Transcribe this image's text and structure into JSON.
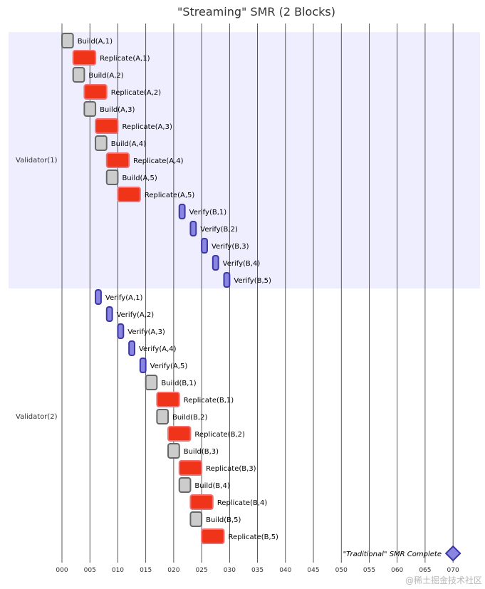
{
  "chart_data": {
    "type": "gantt",
    "title": "\"Streaming\" SMR (2 Blocks)",
    "x_axis": {
      "unit": "time",
      "range": [
        0,
        70
      ],
      "ticks": [
        "000",
        "005",
        "010",
        "015",
        "020",
        "025",
        "030",
        "035",
        "040",
        "045",
        "050",
        "055",
        "060",
        "065",
        "070"
      ],
      "tick_values": [
        0,
        5,
        10,
        15,
        20,
        25,
        30,
        35,
        40,
        45,
        50,
        55,
        60,
        65,
        70
      ]
    },
    "task_types": {
      "build": {
        "fill": "#cccccc",
        "stroke": "#666666"
      },
      "replicate": {
        "fill": "#f03419",
        "stroke": "#f07070"
      },
      "verify": {
        "fill": "#8a85e0",
        "stroke": "#3b36a6"
      },
      "milestone": {
        "fill": "#8a85e0",
        "stroke": "#3b36a6"
      }
    },
    "sections": [
      {
        "name": "Validator(1)",
        "background": "#eeeeff",
        "tasks": [
          {
            "label": "Build(A,1)",
            "type": "build",
            "start": 0,
            "end": 2
          },
          {
            "label": "Replicate(A,1)",
            "type": "replicate",
            "start": 2,
            "end": 6
          },
          {
            "label": "Build(A,2)",
            "type": "build",
            "start": 2,
            "end": 4
          },
          {
            "label": "Replicate(A,2)",
            "type": "replicate",
            "start": 4,
            "end": 8
          },
          {
            "label": "Build(A,3)",
            "type": "build",
            "start": 4,
            "end": 6
          },
          {
            "label": "Replicate(A,3)",
            "type": "replicate",
            "start": 6,
            "end": 10
          },
          {
            "label": "Build(A,4)",
            "type": "build",
            "start": 6,
            "end": 8
          },
          {
            "label": "Replicate(A,4)",
            "type": "replicate",
            "start": 8,
            "end": 12
          },
          {
            "label": "Build(A,5)",
            "type": "build",
            "start": 8,
            "end": 10
          },
          {
            "label": "Replicate(A,5)",
            "type": "replicate",
            "start": 10,
            "end": 14
          },
          {
            "label": "Verify(B,1)",
            "type": "verify",
            "start": 21,
            "end": 22
          },
          {
            "label": "Verify(B,2)",
            "type": "verify",
            "start": 23,
            "end": 24
          },
          {
            "label": "Verify(B,3)",
            "type": "verify",
            "start": 25,
            "end": 26
          },
          {
            "label": "Verify(B,4)",
            "type": "verify",
            "start": 27,
            "end": 28
          },
          {
            "label": "Verify(B,5)",
            "type": "verify",
            "start": 29,
            "end": 30
          }
        ]
      },
      {
        "name": "Validator(2)",
        "background": "#ffffff",
        "tasks": [
          {
            "label": "Verify(A,1)",
            "type": "verify",
            "start": 6,
            "end": 7
          },
          {
            "label": "Verify(A,2)",
            "type": "verify",
            "start": 8,
            "end": 9
          },
          {
            "label": "Verify(A,3)",
            "type": "verify",
            "start": 10,
            "end": 11
          },
          {
            "label": "Verify(A,4)",
            "type": "verify",
            "start": 12,
            "end": 13
          },
          {
            "label": "Verify(A,5)",
            "type": "verify",
            "start": 14,
            "end": 15
          },
          {
            "label": "Build(B,1)",
            "type": "build",
            "start": 15,
            "end": 17
          },
          {
            "label": "Replicate(B,1)",
            "type": "replicate",
            "start": 17,
            "end": 21
          },
          {
            "label": "Build(B,2)",
            "type": "build",
            "start": 17,
            "end": 19
          },
          {
            "label": "Replicate(B,2)",
            "type": "replicate",
            "start": 19,
            "end": 23
          },
          {
            "label": "Build(B,3)",
            "type": "build",
            "start": 19,
            "end": 21
          },
          {
            "label": "Replicate(B,3)",
            "type": "replicate",
            "start": 21,
            "end": 25
          },
          {
            "label": "Build(B,4)",
            "type": "build",
            "start": 21,
            "end": 23
          },
          {
            "label": "Replicate(B,4)",
            "type": "replicate",
            "start": 23,
            "end": 27
          },
          {
            "label": "Build(B,5)",
            "type": "build",
            "start": 23,
            "end": 25
          },
          {
            "label": "Replicate(B,5)",
            "type": "replicate",
            "start": 25,
            "end": 29
          }
        ]
      }
    ],
    "milestone": {
      "label": "\"Traditional\" SMR Complete",
      "at": 70
    },
    "watermark": "@稀土掘金技术社区"
  }
}
